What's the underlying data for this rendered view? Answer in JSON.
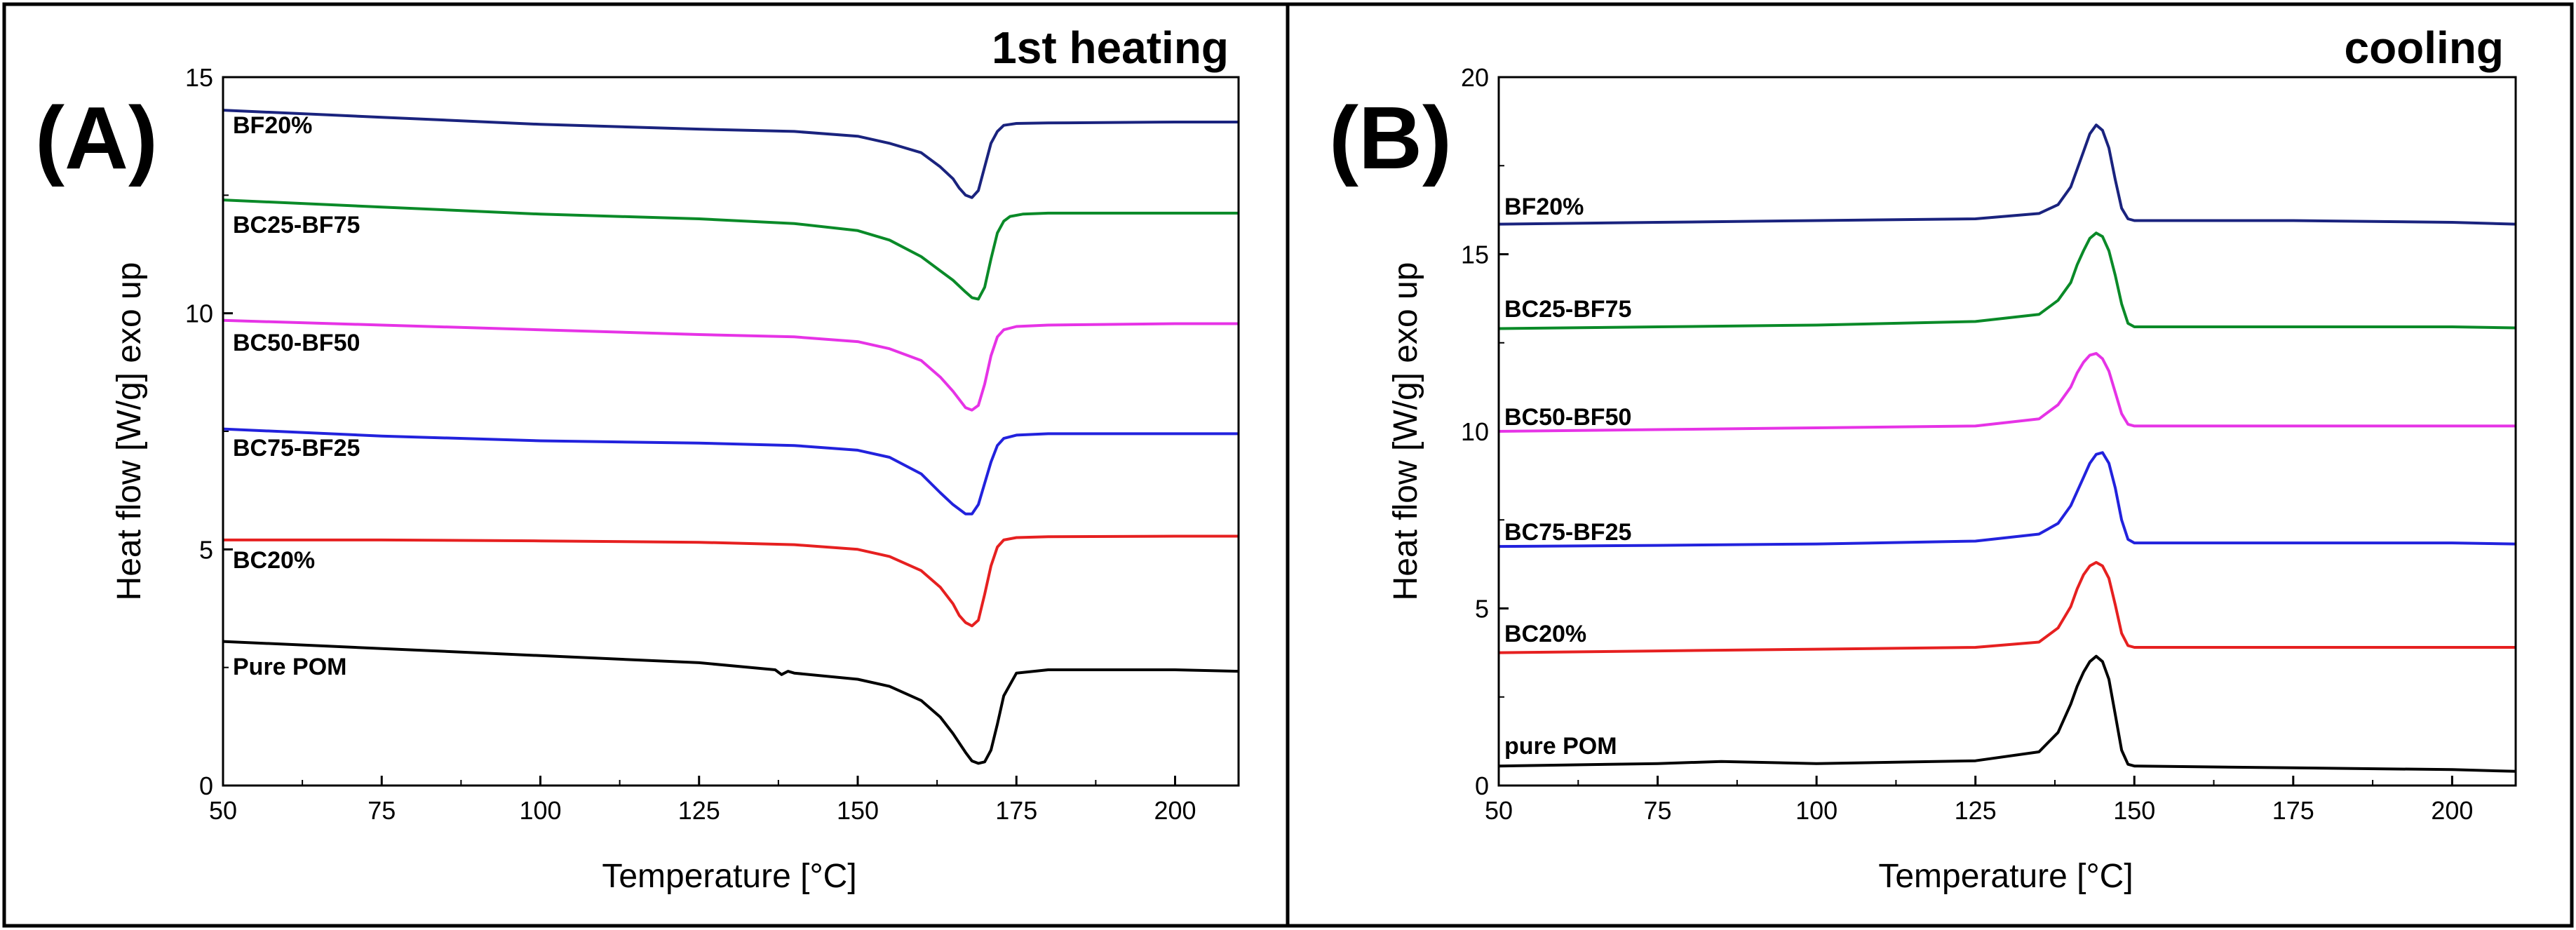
{
  "chart_data": [
    {
      "type": "line",
      "panel_label": "(A)",
      "title": "1st heating",
      "xlabel": "Temperature [°C]",
      "ylabel": "Heat flow [W/g] exo up",
      "xlim": [
        50,
        210
      ],
      "ylim": [
        0,
        15
      ],
      "xticks": [
        50,
        75,
        100,
        125,
        150,
        175,
        200
      ],
      "yticks": [
        0,
        5,
        10,
        15
      ],
      "series": [
        {
          "name": "BF20%",
          "color": "#1a237e",
          "x": [
            50,
            75,
            100,
            125,
            140,
            150,
            155,
            160,
            163,
            165,
            166,
            167,
            168,
            169,
            170,
            171,
            172,
            173,
            175,
            180,
            200,
            210
          ],
          "y": [
            14.3,
            14.15,
            14.0,
            13.9,
            13.85,
            13.75,
            13.6,
            13.4,
            13.1,
            12.85,
            12.65,
            12.5,
            12.45,
            12.6,
            13.1,
            13.6,
            13.85,
            13.98,
            14.02,
            14.03,
            14.05,
            14.05
          ]
        },
        {
          "name": "BC25-BF75",
          "color": "#0a8a28",
          "x": [
            50,
            75,
            100,
            125,
            140,
            150,
            155,
            160,
            163,
            165,
            167,
            168,
            169,
            170,
            171,
            172,
            173,
            174,
            176,
            180,
            200,
            210
          ],
          "y": [
            12.4,
            12.25,
            12.1,
            12.0,
            11.9,
            11.75,
            11.55,
            11.2,
            10.9,
            10.7,
            10.45,
            10.33,
            10.3,
            10.55,
            11.15,
            11.7,
            11.95,
            12.05,
            12.1,
            12.12,
            12.12,
            12.12
          ]
        },
        {
          "name": "BC50-BF50",
          "color": "#e633e6",
          "x": [
            50,
            75,
            100,
            125,
            140,
            150,
            155,
            160,
            163,
            165,
            167,
            168,
            169,
            170,
            171,
            172,
            173,
            175,
            180,
            200,
            210
          ],
          "y": [
            9.85,
            9.75,
            9.65,
            9.55,
            9.5,
            9.4,
            9.25,
            9.0,
            8.65,
            8.35,
            8.0,
            7.95,
            8.05,
            8.5,
            9.1,
            9.5,
            9.65,
            9.72,
            9.75,
            9.78,
            9.78
          ]
        },
        {
          "name": "BC75-BF25",
          "color": "#2222dd",
          "x": [
            50,
            75,
            100,
            125,
            140,
            150,
            155,
            160,
            163,
            165,
            167,
            168,
            169,
            170,
            171,
            172,
            173,
            175,
            180,
            200,
            210
          ],
          "y": [
            7.55,
            7.4,
            7.3,
            7.25,
            7.2,
            7.1,
            6.95,
            6.6,
            6.2,
            5.95,
            5.75,
            5.75,
            5.95,
            6.4,
            6.85,
            7.2,
            7.35,
            7.42,
            7.45,
            7.45,
            7.45
          ]
        },
        {
          "name": "BC20%",
          "color": "#e62020",
          "x": [
            50,
            75,
            100,
            125,
            140,
            150,
            155,
            160,
            163,
            165,
            166,
            167,
            168,
            169,
            170,
            171,
            172,
            173,
            175,
            180,
            200,
            210
          ],
          "y": [
            5.2,
            5.2,
            5.18,
            5.15,
            5.1,
            5.0,
            4.85,
            4.55,
            4.2,
            3.85,
            3.6,
            3.45,
            3.38,
            3.5,
            4.05,
            4.65,
            5.05,
            5.2,
            5.25,
            5.27,
            5.28,
            5.28
          ]
        },
        {
          "name": "Pure POM",
          "color": "#000000",
          "x": [
            50,
            75,
            100,
            125,
            137,
            138,
            139,
            140,
            150,
            155,
            160,
            163,
            165,
            167,
            168,
            169,
            170,
            171,
            172,
            173,
            175,
            180,
            200,
            210
          ],
          "y": [
            3.05,
            2.9,
            2.75,
            2.6,
            2.45,
            2.35,
            2.42,
            2.38,
            2.25,
            2.1,
            1.8,
            1.45,
            1.1,
            0.7,
            0.52,
            0.47,
            0.5,
            0.75,
            1.3,
            1.9,
            2.38,
            2.45,
            2.45,
            2.42
          ]
        }
      ]
    },
    {
      "type": "line",
      "panel_label": "(B)",
      "title": "cooling",
      "xlabel": "Temperature [°C]",
      "ylabel": "Heat flow [W/g] exo up",
      "xlim": [
        50,
        210
      ],
      "ylim": [
        0,
        20
      ],
      "xticks": [
        50,
        75,
        100,
        125,
        150,
        175,
        200
      ],
      "yticks": [
        0,
        5,
        10,
        15,
        20
      ],
      "series": [
        {
          "name": "BF20%",
          "color": "#1a237e",
          "x": [
            50,
            75,
            100,
            125,
            135,
            138,
            140,
            141,
            142,
            143,
            144,
            145,
            146,
            147,
            148,
            149,
            150,
            175,
            200,
            210
          ],
          "y": [
            15.85,
            15.9,
            15.95,
            16.0,
            16.15,
            16.4,
            16.9,
            17.4,
            17.9,
            18.4,
            18.65,
            18.5,
            18.0,
            17.1,
            16.3,
            16.0,
            15.95,
            15.95,
            15.9,
            15.85
          ]
        },
        {
          "name": "BC25-BF75",
          "color": "#0a8a28",
          "x": [
            50,
            75,
            100,
            125,
            135,
            138,
            140,
            141,
            142,
            143,
            144,
            145,
            146,
            147,
            148,
            149,
            150,
            175,
            200,
            210
          ],
          "y": [
            12.9,
            12.95,
            13.0,
            13.1,
            13.3,
            13.7,
            14.2,
            14.7,
            15.1,
            15.45,
            15.6,
            15.5,
            15.1,
            14.4,
            13.6,
            13.05,
            12.95,
            12.95,
            12.95,
            12.92
          ]
        },
        {
          "name": "BC50-BF50",
          "color": "#e633e6",
          "x": [
            50,
            75,
            100,
            125,
            135,
            138,
            140,
            141,
            142,
            143,
            144,
            145,
            146,
            147,
            148,
            149,
            150,
            175,
            200,
            210
          ],
          "y": [
            10.0,
            10.05,
            10.1,
            10.15,
            10.35,
            10.75,
            11.25,
            11.65,
            11.95,
            12.15,
            12.2,
            12.05,
            11.7,
            11.1,
            10.5,
            10.2,
            10.15,
            10.15,
            10.15,
            10.15
          ]
        },
        {
          "name": "BC75-BF25",
          "color": "#2222dd",
          "x": [
            50,
            75,
            100,
            125,
            135,
            138,
            140,
            141,
            142,
            143,
            144,
            145,
            146,
            147,
            148,
            149,
            150,
            175,
            200,
            210
          ],
          "y": [
            6.75,
            6.78,
            6.82,
            6.9,
            7.1,
            7.4,
            7.9,
            8.3,
            8.7,
            9.1,
            9.35,
            9.4,
            9.1,
            8.4,
            7.5,
            6.95,
            6.85,
            6.85,
            6.85,
            6.82
          ]
        },
        {
          "name": "BC20%",
          "color": "#e62020",
          "x": [
            50,
            75,
            100,
            125,
            135,
            138,
            140,
            141,
            142,
            143,
            144,
            145,
            146,
            147,
            148,
            149,
            150,
            175,
            200,
            210
          ],
          "y": [
            3.75,
            3.8,
            3.85,
            3.9,
            4.05,
            4.45,
            5.05,
            5.55,
            5.95,
            6.2,
            6.3,
            6.2,
            5.85,
            5.1,
            4.3,
            3.95,
            3.9,
            3.9,
            3.9,
            3.9
          ]
        },
        {
          "name": "pure POM",
          "color": "#000000",
          "x": [
            50,
            75,
            85,
            100,
            125,
            135,
            138,
            140,
            141,
            142,
            143,
            144,
            145,
            146,
            147,
            148,
            149,
            150,
            175,
            200,
            210
          ],
          "y": [
            0.55,
            0.62,
            0.68,
            0.62,
            0.7,
            0.95,
            1.5,
            2.3,
            2.8,
            3.2,
            3.5,
            3.65,
            3.5,
            3.0,
            2.0,
            1.0,
            0.6,
            0.55,
            0.5,
            0.45,
            0.4
          ]
        }
      ]
    }
  ]
}
